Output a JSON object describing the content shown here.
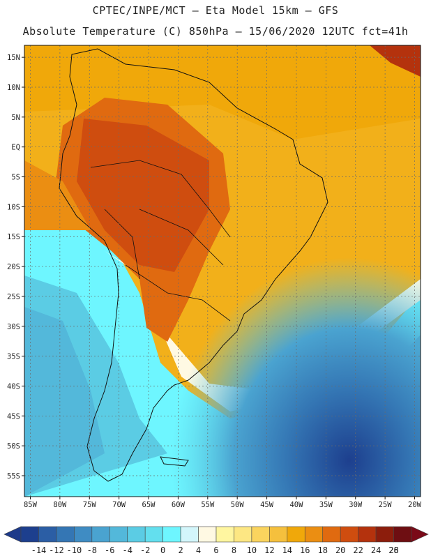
{
  "header": {
    "line1": "CPTEC/INPE/MCT –  Eta Model 15km – GFS",
    "line2": "Absolute Temperature (C) 850hPa – 15/06/2020 12UTC fct=41h"
  },
  "map": {
    "lon_range": [
      -86,
      -19
    ],
    "lat_range": [
      -58.5,
      17
    ],
    "lat_ticks": [
      "15N",
      "10N",
      "5N",
      "EQ",
      "5S",
      "10S",
      "15S",
      "20S",
      "25S",
      "30S",
      "35S",
      "40S",
      "45S",
      "50S",
      "55S"
    ],
    "lon_ticks": [
      "85W",
      "80W",
      "75W",
      "70W",
      "65W",
      "60W",
      "55W",
      "50W",
      "45W",
      "40W",
      "35W",
      "30W",
      "25W",
      "20W"
    ],
    "grid": true
  },
  "colorbar": {
    "labels": [
      "-14",
      "-12",
      "-10",
      "-8",
      "-6",
      "-4",
      "-2",
      "0",
      "2",
      "4",
      "6",
      "8",
      "10",
      "12",
      "14",
      "16",
      "18",
      "20",
      "22",
      "24",
      "26",
      "28"
    ],
    "colors": [
      "#1d3f8e",
      "#2b5ea5",
      "#3476b4",
      "#3f8cc3",
      "#4aa3d0",
      "#53b8da",
      "#5bcce4",
      "#63dfee",
      "#6ef6ff",
      "#d3f6fb",
      "#fff9e3",
      "#fff6a0",
      "#fde783",
      "#fad45e",
      "#f5c03d",
      "#f0a80a",
      "#eb8e12",
      "#e06a10",
      "#cf4d0f",
      "#b4320d",
      "#8c1d0c",
      "#6e0e12"
    ],
    "arrow_left_color": "#1d3a8a",
    "arrow_right_color": "#7a0a18"
  }
}
